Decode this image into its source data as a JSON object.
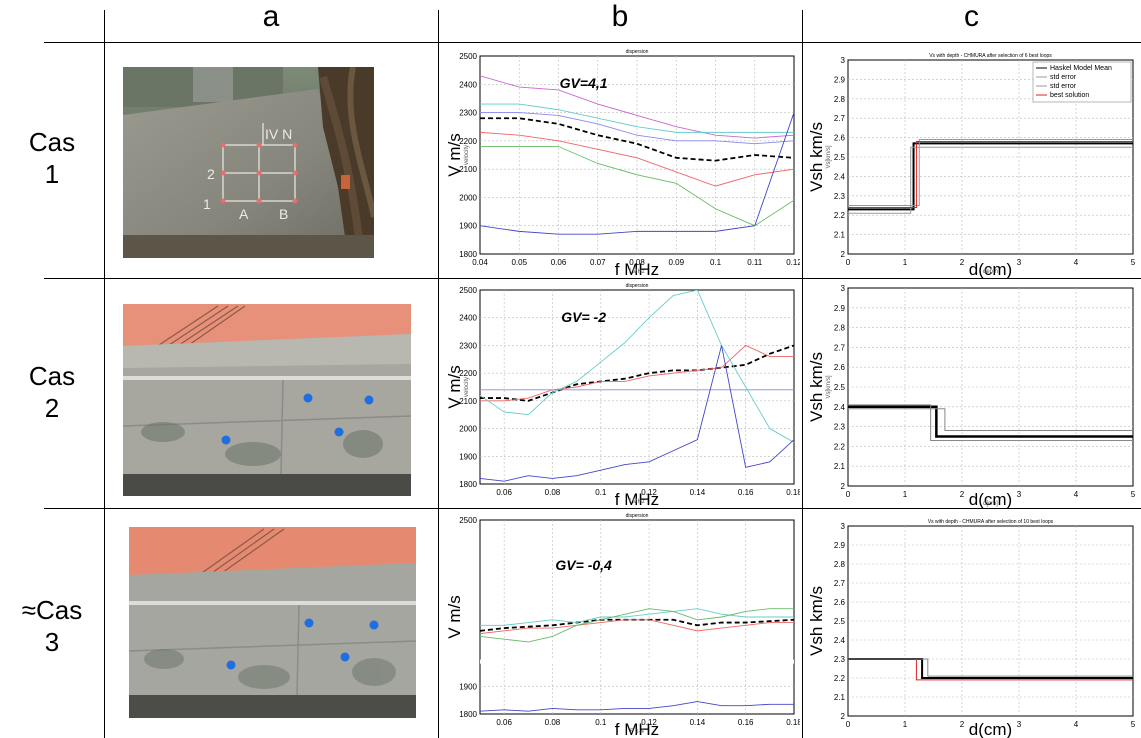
{
  "headers": {
    "a": "a",
    "b": "b",
    "c": "c"
  },
  "cases": [
    {
      "label_line1": "Cas",
      "label_line2": "1"
    },
    {
      "label_line1": "Cas",
      "label_line2": "2"
    },
    {
      "label_line1": "≈Cas",
      "label_line2": "3"
    }
  ],
  "chart_data": [
    {
      "type": "line",
      "title": "dispersion",
      "annotation": "GV=4,1",
      "xlabel": "f MHz",
      "ylabel": "V m/s",
      "small_xlabel": "f MHz",
      "small_ylabel": "velocity",
      "xlim": [
        0.04,
        0.12
      ],
      "ylim": [
        1800,
        2500
      ],
      "xticks": [
        "0.04",
        "0.05",
        "0.06",
        "0.07",
        "0.08",
        "0.09",
        "0.1",
        "0.11",
        "0.12"
      ],
      "yticks": [
        "1800",
        "1900",
        "2000",
        "2100",
        "2200",
        "2300",
        "2400",
        "2500"
      ],
      "x": [
        0.04,
        0.05,
        0.06,
        0.07,
        0.08,
        0.09,
        0.1,
        0.11,
        0.12
      ],
      "series": [
        {
          "values": [
            2280,
            2280,
            2260,
            2220,
            2190,
            2140,
            2130,
            2150,
            2140
          ],
          "color": "#000000",
          "dash": true
        },
        {
          "values": [
            2430,
            2390,
            2380,
            2330,
            2290,
            2250,
            2220,
            2210,
            2220
          ],
          "color": "#cc66cc"
        },
        {
          "values": [
            2330,
            2330,
            2310,
            2280,
            2250,
            2230,
            2230,
            2230,
            2230
          ],
          "color": "#66cccc"
        },
        {
          "values": [
            2300,
            2300,
            2290,
            2260,
            2220,
            2200,
            2200,
            2190,
            2200
          ],
          "color": "#8888ee"
        },
        {
          "values": [
            2230,
            2220,
            2200,
            2170,
            2140,
            2090,
            2040,
            2080,
            2100
          ],
          "color": "#ee6666"
        },
        {
          "values": [
            2180,
            2180,
            2180,
            2120,
            2080,
            2050,
            1960,
            1900,
            1990
          ],
          "color": "#66bb66"
        },
        {
          "values": [
            1900,
            1880,
            1870,
            1870,
            1880,
            1880,
            1880,
            1900,
            2300
          ],
          "color": "#4444cc"
        }
      ]
    },
    {
      "type": "line",
      "title": "dispersion",
      "annotation": "GV= -2",
      "xlabel": "f MHz",
      "ylabel": "V m/s",
      "small_xlabel": "f MHz",
      "small_ylabel": "velocity",
      "xlim": [
        0.05,
        0.18
      ],
      "ylim": [
        1800,
        2500
      ],
      "xticks": [
        "0.06",
        "0.08",
        "0.1",
        "0.12",
        "0.14",
        "0.16",
        "0.18"
      ],
      "yticks": [
        "1800",
        "1900",
        "2000",
        "2100",
        "2200",
        "2300",
        "2400",
        "2500"
      ],
      "x": [
        0.05,
        0.06,
        0.07,
        0.08,
        0.09,
        0.1,
        0.11,
        0.12,
        0.13,
        0.14,
        0.15,
        0.16,
        0.17,
        0.18
      ],
      "series": [
        {
          "values": [
            2110,
            2110,
            2100,
            2130,
            2160,
            2170,
            2180,
            2200,
            2210,
            2210,
            2220,
            2230,
            2270,
            2300
          ],
          "color": "#000000",
          "dash": true
        },
        {
          "values": [
            2100,
            2100,
            2110,
            2140,
            2150,
            2170,
            2170,
            2190,
            2200,
            2210,
            2220,
            2300,
            2260,
            2260
          ],
          "color": "#ee6666"
        },
        {
          "values": [
            2120,
            2060,
            2050,
            2130,
            2170,
            2240,
            2310,
            2400,
            2480,
            2500,
            2300,
            2150,
            2000,
            1950
          ],
          "color": "#66cccc"
        },
        {
          "values": [
            2140,
            2140,
            2140,
            2140,
            2140,
            2140,
            2140,
            2140,
            2140,
            2140,
            2140,
            2140,
            2140,
            2140
          ],
          "color": "#8888ee"
        },
        {
          "values": [
            1820,
            1810,
            1830,
            1820,
            1830,
            1850,
            1870,
            1880,
            1920,
            1960,
            2300,
            1860,
            1880,
            1960
          ],
          "color": "#4444cc"
        }
      ]
    },
    {
      "type": "line",
      "title": "dispersion",
      "annotation": "GV= -0,4",
      "xlabel": "f MHz",
      "ylabel": "V m/s",
      "small_xlabel": "F 1-4",
      "xlim": [
        0.05,
        0.18
      ],
      "ylim": [
        1800,
        2500
      ],
      "xticks": [
        "0.06",
        "0.08",
        "0.1",
        "0.12",
        "0.14",
        "0.16",
        "0.18"
      ],
      "yticks": [
        "1800",
        "1900",
        "2500"
      ],
      "x": [
        0.05,
        0.06,
        0.07,
        0.08,
        0.09,
        0.1,
        0.11,
        0.12,
        0.13,
        0.14,
        0.15,
        0.16,
        0.17,
        0.18
      ],
      "series": [
        {
          "values": [
            2100,
            2110,
            2115,
            2120,
            2130,
            2140,
            2140,
            2140,
            2140,
            2120,
            2130,
            2130,
            2135,
            2140
          ],
          "color": "#000000",
          "dash": true
        },
        {
          "values": [
            2090,
            2100,
            2110,
            2110,
            2120,
            2130,
            2140,
            2140,
            2120,
            2100,
            2110,
            2120,
            2130,
            2130
          ],
          "color": "#ee6666"
        },
        {
          "values": [
            2120,
            2120,
            2130,
            2140,
            2130,
            2150,
            2150,
            2160,
            2170,
            2180,
            2160,
            2150,
            2150,
            2150
          ],
          "color": "#66cccc"
        },
        {
          "values": [
            2080,
            2070,
            2060,
            2080,
            2120,
            2140,
            2160,
            2180,
            2170,
            2140,
            2150,
            2170,
            2180,
            2180
          ],
          "color": "#66bb66"
        },
        {
          "values": [
            1810,
            1815,
            1810,
            1820,
            1815,
            1815,
            1820,
            1820,
            1830,
            1845,
            1830,
            1830,
            1835,
            1835
          ],
          "color": "#4444cc"
        }
      ]
    },
    {
      "type": "line",
      "title": "Vs with depth - CHMURA after selection of  6 best loops",
      "xlabel": "d(cm)",
      "ylabel": "Vsh km/s",
      "small_xlabel": "depth",
      "small_ylabel": "Vs[km/s]",
      "xlim": [
        0,
        5
      ],
      "ylim": [
        2,
        3
      ],
      "xticks": [
        "0",
        "1",
        "2",
        "3",
        "4",
        "5"
      ],
      "yticks": [
        "2",
        "2.1",
        "2.2",
        "2.3",
        "2.4",
        "2.5",
        "2.6",
        "2.7",
        "2.8",
        "2.9",
        "3"
      ],
      "legend": [
        "Haskel Model Mean",
        "std error",
        "std error",
        "best solution"
      ],
      "legend_position": "top-right",
      "series": [
        {
          "name": "Haskel Model Mean",
          "steps": [
            [
              0,
              2.23
            ],
            [
              1.15,
              2.23
            ],
            [
              1.15,
              2.57
            ],
            [
              5,
              2.57
            ]
          ],
          "color": "#000000",
          "width": 2
        },
        {
          "name": "std error",
          "steps": [
            [
              0,
              2.21
            ],
            [
              1.1,
              2.21
            ],
            [
              1.1,
              2.55
            ],
            [
              5,
              2.55
            ]
          ],
          "color": "#999999",
          "width": 1
        },
        {
          "name": "std error",
          "steps": [
            [
              0,
              2.25
            ],
            [
              1.25,
              2.25
            ],
            [
              1.25,
              2.59
            ],
            [
              5,
              2.59
            ]
          ],
          "color": "#999999",
          "width": 1
        },
        {
          "name": "best solution",
          "steps": [
            [
              0,
              2.24
            ],
            [
              1.2,
              2.24
            ],
            [
              1.2,
              2.58
            ],
            [
              5,
              2.58
            ]
          ],
          "color": "#dd2222",
          "width": 1
        }
      ]
    },
    {
      "type": "line",
      "xlabel": "d(cm)",
      "ylabel": "Vsh km/s",
      "small_xlabel": "d[cm]",
      "small_ylabel": "Vs[km/s]",
      "xlim": [
        0,
        5
      ],
      "ylim": [
        2,
        3
      ],
      "xticks": [
        "0",
        "1",
        "2",
        "3",
        "4",
        "5"
      ],
      "yticks": [
        "2",
        "2.1",
        "2.2",
        "2.3",
        "2.4",
        "2.5",
        "2.6",
        "2.7",
        "2.8",
        "2.9",
        "3"
      ],
      "series": [
        {
          "steps": [
            [
              0,
              2.4
            ],
            [
              1.55,
              2.4
            ],
            [
              1.55,
              2.25
            ],
            [
              5,
              2.25
            ]
          ],
          "color": "#000000",
          "width": 2.5
        },
        {
          "steps": [
            [
              0,
              2.41
            ],
            [
              1.45,
              2.41
            ],
            [
              1.45,
              2.23
            ],
            [
              5,
              2.23
            ]
          ],
          "color": "#888888",
          "width": 1
        },
        {
          "steps": [
            [
              0,
              2.39
            ],
            [
              1.7,
              2.39
            ],
            [
              1.7,
              2.28
            ],
            [
              5,
              2.28
            ]
          ],
          "color": "#888888",
          "width": 1
        }
      ]
    },
    {
      "type": "line",
      "title": "Vs with depth - CHMURA after selection of  10 best loops",
      "xlabel": "d(cm)",
      "ylabel": "Vsh km/s",
      "xlim": [
        0,
        5
      ],
      "ylim": [
        2,
        3
      ],
      "xticks": [
        "0",
        "1",
        "2",
        "3",
        "4",
        "5"
      ],
      "yticks": [
        "2",
        "2.1",
        "2.2",
        "2.3",
        "2.4",
        "2.5",
        "2.6",
        "2.7",
        "2.8",
        "2.9",
        "3"
      ],
      "series": [
        {
          "steps": [
            [
              0,
              2.3
            ],
            [
              1.3,
              2.3
            ],
            [
              1.3,
              2.2
            ],
            [
              5,
              2.2
            ]
          ],
          "color": "#000000",
          "width": 2
        },
        {
          "steps": [
            [
              0,
              2.3
            ],
            [
              1.2,
              2.3
            ],
            [
              1.2,
              2.19
            ],
            [
              5,
              2.19
            ]
          ],
          "color": "#dd2222",
          "width": 1
        },
        {
          "steps": [
            [
              0,
              2.3
            ],
            [
              1.4,
              2.3
            ],
            [
              1.4,
              2.21
            ],
            [
              5,
              2.21
            ]
          ],
          "color": "#888888",
          "width": 1
        }
      ]
    }
  ],
  "photos": [
    {
      "marks": [
        "IV N",
        "2",
        "1",
        "A",
        "B"
      ]
    },
    {},
    {}
  ]
}
